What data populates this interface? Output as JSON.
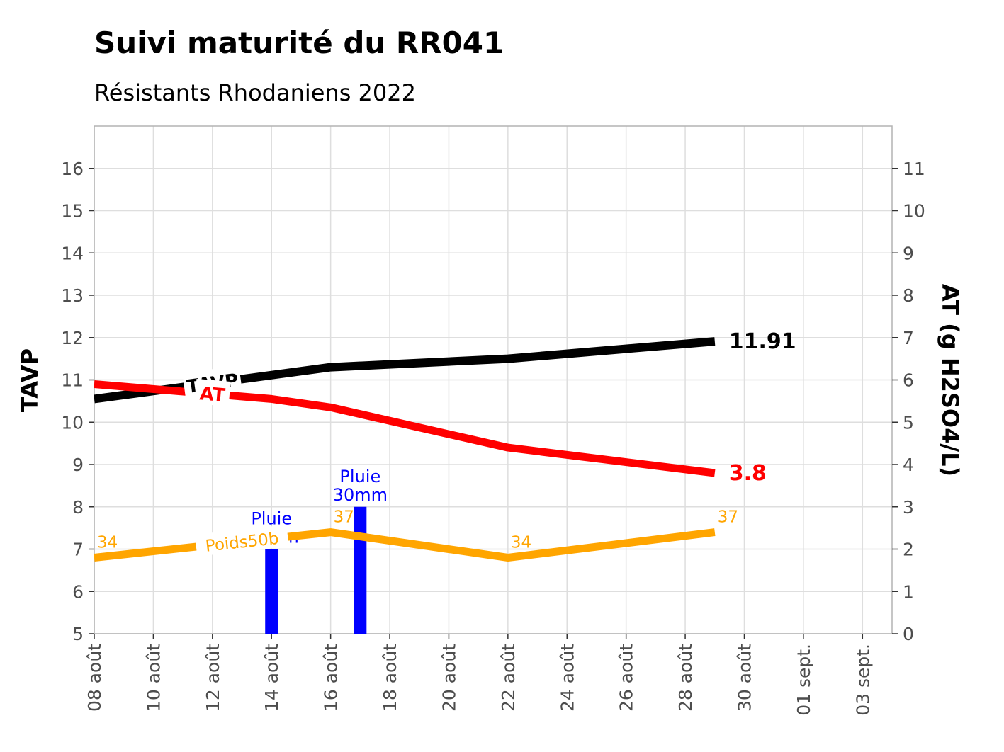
{
  "chart_data": {
    "type": "line",
    "title": "Suivi maturité du RR041",
    "subtitle": "Résistants Rhodaniens 2022",
    "xlabel": "",
    "ylabel_left": "TAVP",
    "ylabel_right": "AT (g H2SO4/L)",
    "ylim_left": [
      5,
      17
    ],
    "ylim_right": [
      0,
      12
    ],
    "yticks_left": [
      5,
      6,
      7,
      8,
      9,
      10,
      11,
      12,
      13,
      14,
      15,
      16
    ],
    "yticks_right": [
      0,
      1,
      2,
      3,
      4,
      5,
      6,
      7,
      8,
      9,
      10,
      11
    ],
    "xlim": [
      "2022-08-08",
      "2022-09-04"
    ],
    "xticks": [
      {
        "date": "2022-08-08",
        "label": "08 août"
      },
      {
        "date": "2022-08-10",
        "label": "10 août"
      },
      {
        "date": "2022-08-12",
        "label": "12 août"
      },
      {
        "date": "2022-08-14",
        "label": "14 août"
      },
      {
        "date": "2022-08-16",
        "label": "16 août"
      },
      {
        "date": "2022-08-18",
        "label": "18 août"
      },
      {
        "date": "2022-08-20",
        "label": "20 août"
      },
      {
        "date": "2022-08-22",
        "label": "22 août"
      },
      {
        "date": "2022-08-24",
        "label": "24 août"
      },
      {
        "date": "2022-08-26",
        "label": "26 août"
      },
      {
        "date": "2022-08-28",
        "label": "28 août"
      },
      {
        "date": "2022-08-30",
        "label": "30 août"
      },
      {
        "date": "2022-09-01",
        "label": "01 sept."
      },
      {
        "date": "2022-09-03",
        "label": "03 sept."
      }
    ],
    "grid": true,
    "series": [
      {
        "name": "TAVP",
        "axis": "left",
        "color": "#000000",
        "x": [
          "2022-08-08",
          "2022-08-16",
          "2022-08-22",
          "2022-08-29"
        ],
        "values": [
          10.55,
          11.3,
          11.5,
          11.91
        ],
        "label_position": "2022-08-12",
        "end_label": "11.91"
      },
      {
        "name": "AT",
        "axis": "right",
        "color": "#ff0000",
        "x": [
          "2022-08-08",
          "2022-08-14",
          "2022-08-16",
          "2022-08-22",
          "2022-08-29"
        ],
        "values": [
          5.9,
          5.55,
          5.35,
          4.4,
          3.8
        ],
        "label_position": "2022-08-12",
        "end_label": "3.8"
      },
      {
        "name": "Poids50b",
        "axis": "left",
        "color": "#ffa500",
        "x": [
          "2022-08-08",
          "2022-08-16",
          "2022-08-22",
          "2022-08-29"
        ],
        "values": [
          6.8,
          7.4,
          6.8,
          7.4
        ],
        "point_labels": [
          "34",
          "37",
          "34",
          "37"
        ],
        "label_position": "2022-08-13"
      }
    ],
    "rain": {
      "axis": "right",
      "color": "#0000ff",
      "bars": [
        {
          "date": "2022-08-14",
          "value": 2,
          "label_1": "Pluie",
          "label_2": "18mm"
        },
        {
          "date": "2022-08-17",
          "value": 3,
          "label_1": "Pluie",
          "label_2": "30mm"
        }
      ]
    }
  }
}
